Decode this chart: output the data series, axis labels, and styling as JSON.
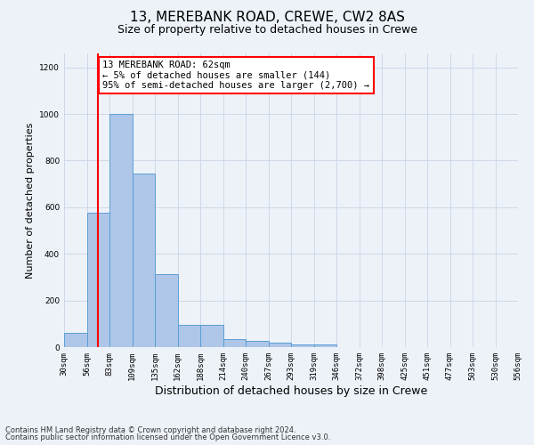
{
  "title1": "13, MEREBANK ROAD, CREWE, CW2 8AS",
  "title2": "Size of property relative to detached houses in Crewe",
  "xlabel": "Distribution of detached houses by size in Crewe",
  "ylabel": "Number of detached properties",
  "footer1": "Contains HM Land Registry data © Crown copyright and database right 2024.",
  "footer2": "Contains public sector information licensed under the Open Government Licence v3.0.",
  "annotation_title": "13 MEREBANK ROAD: 62sqm",
  "annotation_line2": "← 5% of detached houses are smaller (144)",
  "annotation_line3": "95% of semi-detached houses are larger (2,700) →",
  "bar_values": [
    60,
    575,
    1000,
    745,
    315,
    95,
    95,
    35,
    25,
    18,
    10,
    10,
    0,
    0,
    0,
    0,
    0,
    0,
    0,
    0
  ],
  "tick_labels": [
    "30sqm",
    "56sqm",
    "83sqm",
    "109sqm",
    "135sqm",
    "162sqm",
    "188sqm",
    "214sqm",
    "240sqm",
    "267sqm",
    "293sqm",
    "319sqm",
    "346sqm",
    "372sqm",
    "398sqm",
    "425sqm",
    "451sqm",
    "477sqm",
    "503sqm",
    "530sqm",
    "556sqm"
  ],
  "bar_color": "#aec6e8",
  "bar_edge_color": "#5a9fd4",
  "red_line_x": 1.5,
  "ylim": [
    0,
    1260
  ],
  "yticks": [
    0,
    200,
    400,
    600,
    800,
    1000,
    1200
  ],
  "grid_color": "#d0d8e8",
  "bg_color": "#edf2f9",
  "title1_fontsize": 11,
  "title2_fontsize": 9,
  "ylabel_fontsize": 8,
  "xlabel_fontsize": 9,
  "tick_fontsize": 6.5,
  "footer_fontsize": 6
}
